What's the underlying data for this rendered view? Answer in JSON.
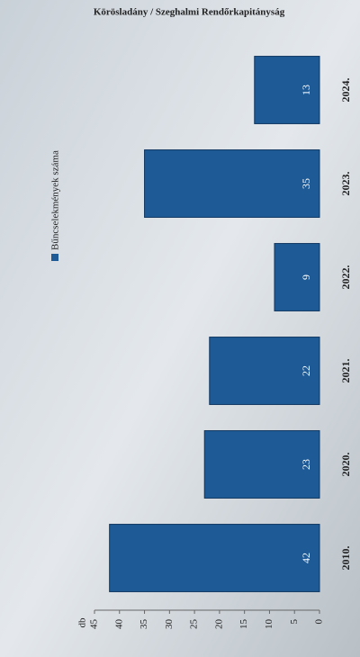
{
  "chart_data": {
    "type": "bar",
    "title": "Körösladány / Szeghalmi Rendőrkapitányság",
    "y_label": "db",
    "categories": [
      "2010.",
      "2020.",
      "2021.",
      "2022.",
      "2023.",
      "2024."
    ],
    "series": [
      {
        "name": "Bűncselekmények száma",
        "color": "#1d5a96",
        "values": [
          42,
          23,
          22,
          9,
          35,
          13
        ]
      }
    ],
    "ylim": [
      0,
      45
    ],
    "yticks": [
      0,
      5,
      10,
      15,
      20,
      25,
      30,
      35,
      40,
      45
    ]
  }
}
